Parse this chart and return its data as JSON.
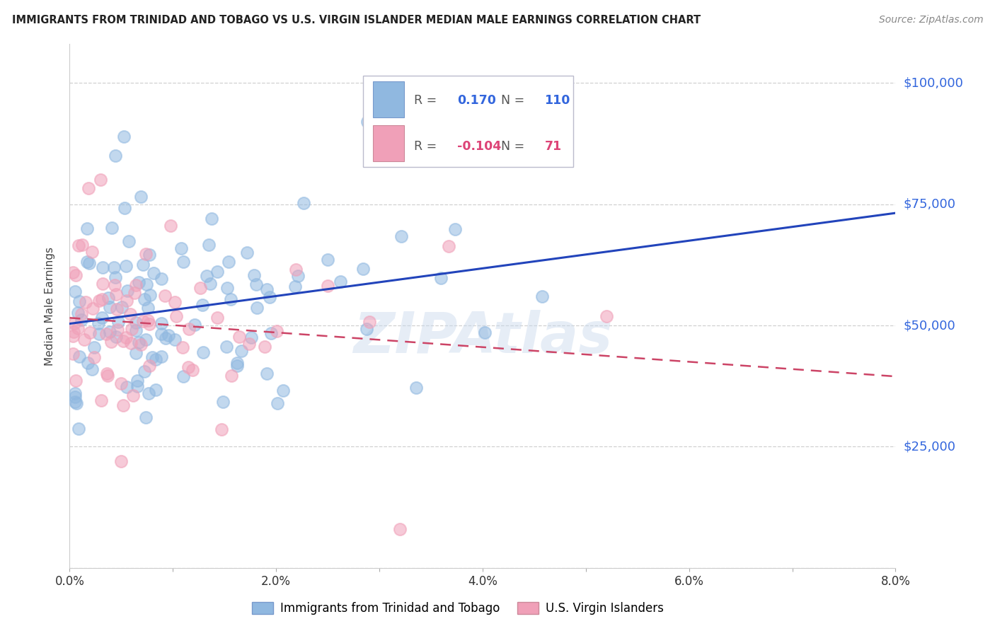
{
  "title": "IMMIGRANTS FROM TRINIDAD AND TOBAGO VS U.S. VIRGIN ISLANDER MEDIAN MALE EARNINGS CORRELATION CHART",
  "source": "Source: ZipAtlas.com",
  "ylabel": "Median Male Earnings",
  "xlim": [
    0.0,
    0.08
  ],
  "ylim": [
    0,
    108000
  ],
  "blue_R": 0.17,
  "blue_N": 110,
  "pink_R": -0.104,
  "pink_N": 71,
  "blue_color": "#90B8E0",
  "pink_color": "#F0A0B8",
  "trend_blue_color": "#2244BB",
  "trend_pink_color": "#CC4466",
  "legend_label_blue": "Immigrants from Trinidad and Tobago",
  "legend_label_pink": "U.S. Virgin Islanders",
  "watermark": "ZIPAtlas",
  "ytick_vals": [
    25000,
    50000,
    75000,
    100000
  ],
  "ytick_labels": [
    "$25,000",
    "$50,000",
    "$75,000",
    "$100,000"
  ]
}
